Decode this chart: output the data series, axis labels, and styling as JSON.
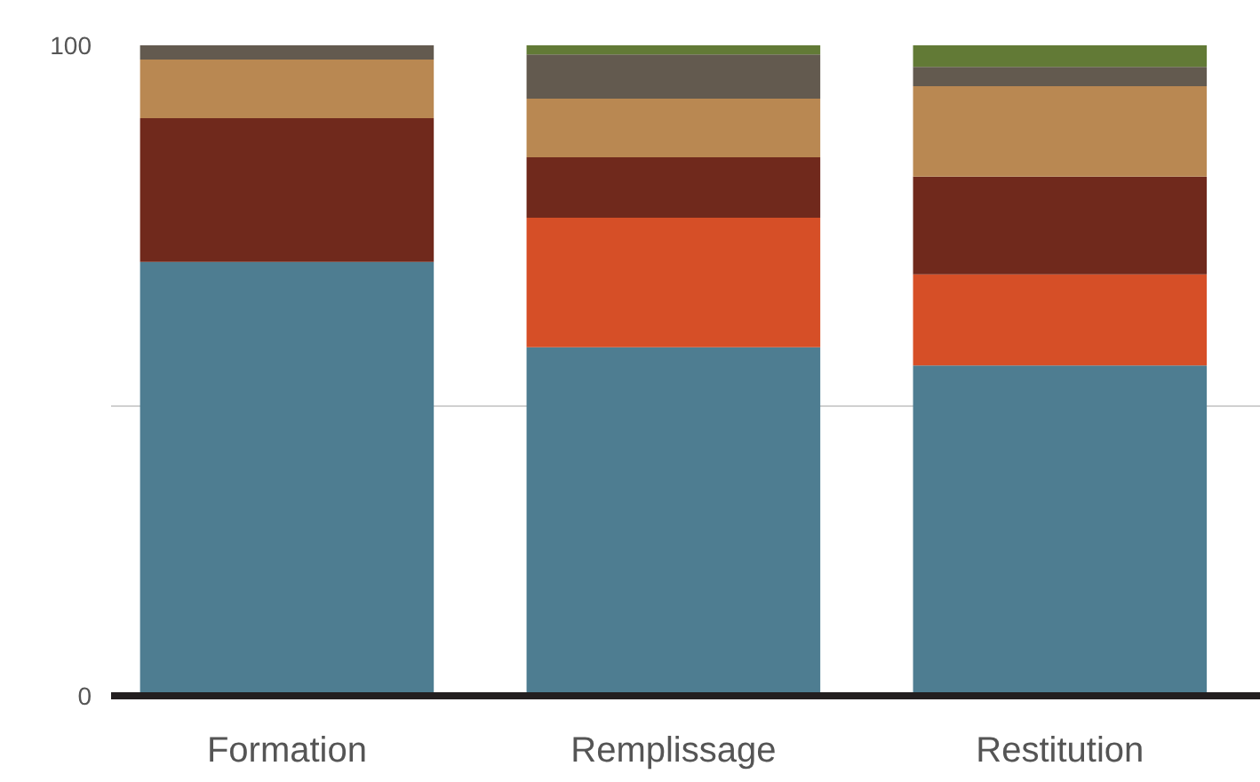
{
  "chart_data": {
    "type": "bar",
    "stacked": true,
    "categories": [
      "Formation",
      "Remplissage",
      "Restitution"
    ],
    "series": [
      {
        "color": "#4e7d91",
        "values": [
          66.7,
          53.6,
          50.8
        ]
      },
      {
        "color": "#d64f27",
        "values": [
          0,
          19.9,
          14.0
        ]
      },
      {
        "color": "#70291c",
        "values": [
          22.1,
          9.3,
          15.0
        ]
      },
      {
        "color": "#b98852",
        "values": [
          9.0,
          9.0,
          13.9
        ]
      },
      {
        "color": "#635a4f",
        "values": [
          2.2,
          6.8,
          3.0
        ]
      },
      {
        "color": "#627a36",
        "values": [
          0,
          1.4,
          3.3
        ]
      }
    ],
    "ylim": [
      0,
      100
    ],
    "yticks": [
      0,
      {
        "value": 44.4,
        "label": null
      },
      100
    ],
    "grid": "y"
  }
}
